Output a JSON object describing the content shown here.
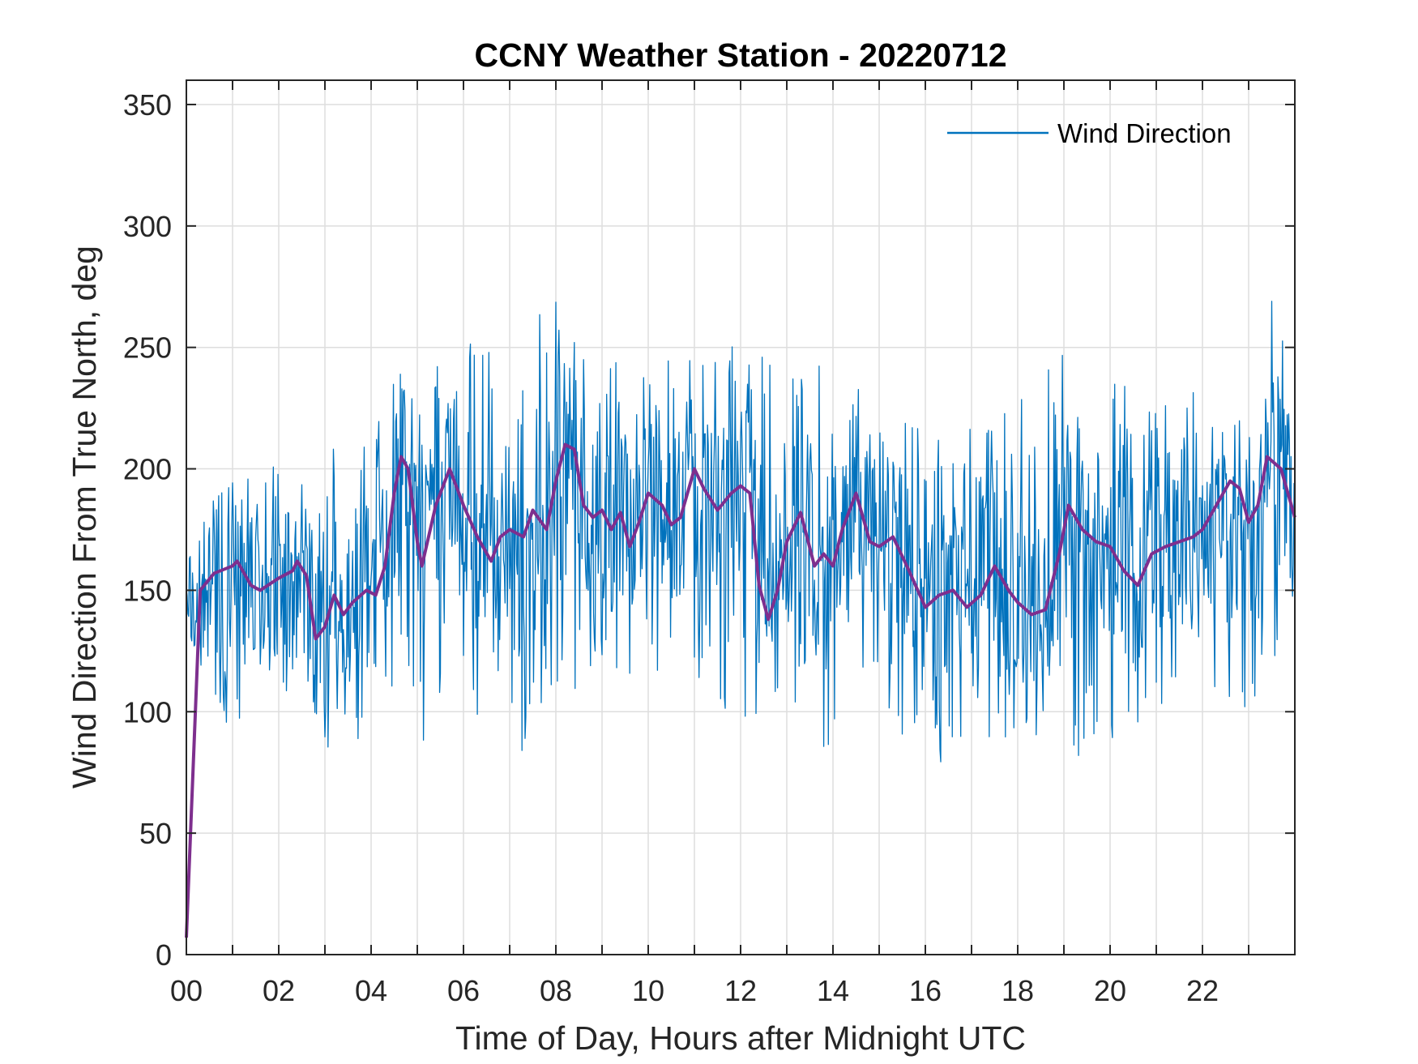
{
  "chart_data": {
    "type": "line",
    "title": "CCNY Weather Station - 20220712",
    "xlabel": "Time of Day, Hours after Midnight UTC",
    "ylabel": "Wind Direction From True North, deg",
    "xlim": [
      0,
      24
    ],
    "ylim": [
      0,
      360
    ],
    "x_ticks": [
      0,
      2,
      4,
      6,
      8,
      10,
      12,
      14,
      16,
      18,
      20,
      22
    ],
    "x_tick_labels": [
      "00",
      "02",
      "04",
      "06",
      "08",
      "10",
      "12",
      "14",
      "16",
      "18",
      "20",
      "22"
    ],
    "y_ticks": [
      0,
      50,
      100,
      150,
      200,
      250,
      300,
      350
    ],
    "y_tick_labels": [
      "0",
      "50",
      "100",
      "150",
      "200",
      "250",
      "300",
      "350"
    ],
    "grid": true,
    "legend": {
      "position": "top-right",
      "entries": [
        "Wind Direction"
      ]
    },
    "series": [
      {
        "name": "Wind Direction",
        "color": "#0072BD",
        "sampling_minutes": 1,
        "approx_envelope": {
          "x": [
            0,
            1,
            2,
            3,
            4,
            4.5,
            5,
            6,
            7,
            8,
            9,
            10,
            11,
            12,
            13,
            14,
            15,
            16,
            17,
            18,
            19,
            20,
            21,
            22,
            23,
            23.5,
            24
          ],
          "min": [
            135,
            85,
            100,
            85,
            90,
            110,
            85,
            95,
            73,
            110,
            95,
            98,
            110,
            84,
            110,
            74,
            110,
            71,
            78,
            93,
            65,
            85,
            82,
            105,
            100,
            120,
            115
          ],
          "max": [
            160,
            207,
            200,
            208,
            215,
            245,
            235,
            253,
            255,
            270,
            245,
            245,
            250,
            257,
            235,
            255,
            225,
            218,
            218,
            228,
            260,
            240,
            228,
            240,
            245,
            269,
            235
          ]
        }
      },
      {
        "color": "#7E2F8E",
        "x": [
          0,
          0.3,
          0.6,
          1.0,
          1.1,
          1.4,
          1.6,
          2.0,
          2.3,
          2.4,
          2.6,
          2.8,
          3.0,
          3.2,
          3.4,
          3.6,
          3.9,
          4.1,
          4.3,
          4.5,
          4.65,
          4.8,
          5.0,
          5.1,
          5.4,
          5.7,
          6.0,
          6.3,
          6.6,
          6.8,
          7.0,
          7.3,
          7.5,
          7.8,
          8.0,
          8.2,
          8.4,
          8.6,
          8.8,
          9.0,
          9.2,
          9.4,
          9.6,
          9.8,
          10.0,
          10.3,
          10.5,
          10.7,
          11.0,
          11.2,
          11.5,
          11.8,
          12.0,
          12.2,
          12.4,
          12.6,
          12.8,
          13.0,
          13.3,
          13.6,
          13.8,
          14.0,
          14.2,
          14.5,
          14.8,
          15.0,
          15.3,
          15.6,
          16.0,
          16.3,
          16.6,
          16.9,
          17.2,
          17.5,
          17.8,
          18.0,
          18.3,
          18.6,
          18.9,
          19.1,
          19.4,
          19.7,
          20.0,
          20.3,
          20.6,
          20.9,
          21.2,
          21.5,
          21.8,
          22.0,
          22.3,
          22.6,
          22.8,
          23.0,
          23.2,
          23.4,
          23.7,
          24.0
        ],
        "y": [
          7,
          150,
          157,
          160,
          162,
          152,
          150,
          155,
          158,
          162,
          156,
          130,
          135,
          148,
          140,
          145,
          150,
          148,
          160,
          190,
          205,
          200,
          170,
          160,
          185,
          200,
          185,
          172,
          162,
          172,
          175,
          172,
          183,
          175,
          195,
          210,
          208,
          185,
          180,
          183,
          175,
          182,
          168,
          178,
          190,
          185,
          177,
          180,
          200,
          192,
          183,
          190,
          193,
          190,
          152,
          138,
          150,
          170,
          182,
          160,
          165,
          160,
          175,
          190,
          170,
          168,
          172,
          160,
          143,
          148,
          150,
          143,
          148,
          160,
          150,
          145,
          140,
          142,
          165,
          185,
          175,
          170,
          168,
          158,
          152,
          165,
          168,
          170,
          172,
          175,
          185,
          195,
          192,
          178,
          185,
          205,
          200,
          180
        ]
      }
    ]
  }
}
